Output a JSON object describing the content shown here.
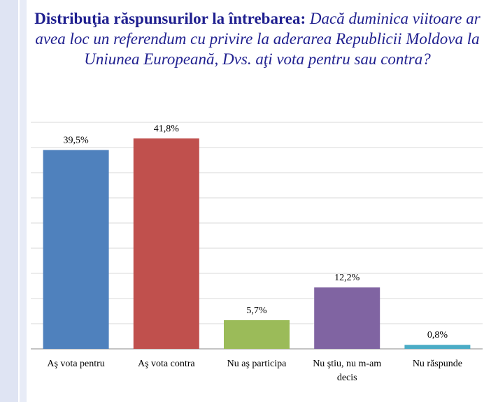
{
  "title": {
    "bold": "Distribuţia răspunsurilor la întrebarea:",
    "italic": "Dacă duminica viitoare ar avea loc un referendum cu privire la aderarea Republicii Moldova la Uniunea Europeană, Dvs. aţi vota pentru sau contra?"
  },
  "colors": {
    "text_title": "#1f1f8f",
    "gridline": "#d9d9d9",
    "axis": "#888888"
  },
  "chart_data": {
    "type": "bar",
    "categories": [
      [
        "Aş vota pentru"
      ],
      [
        "Aş vota contra"
      ],
      [
        "Nu aş participa"
      ],
      [
        "Nu ştiu, nu m-am",
        "decis"
      ],
      [
        "Nu răspunde"
      ]
    ],
    "values": [
      39.5,
      41.8,
      5.7,
      12.2,
      0.8
    ],
    "value_labels": [
      "39,5%",
      "41,8%",
      "5,7%",
      "12,2%",
      "0,8%"
    ],
    "colors": [
      "#4f81bd",
      "#c0504d",
      "#9bbb59",
      "#8064a2",
      "#4bacc6"
    ],
    "ylim": [
      0,
      45
    ],
    "grid": true,
    "legend": "none"
  }
}
